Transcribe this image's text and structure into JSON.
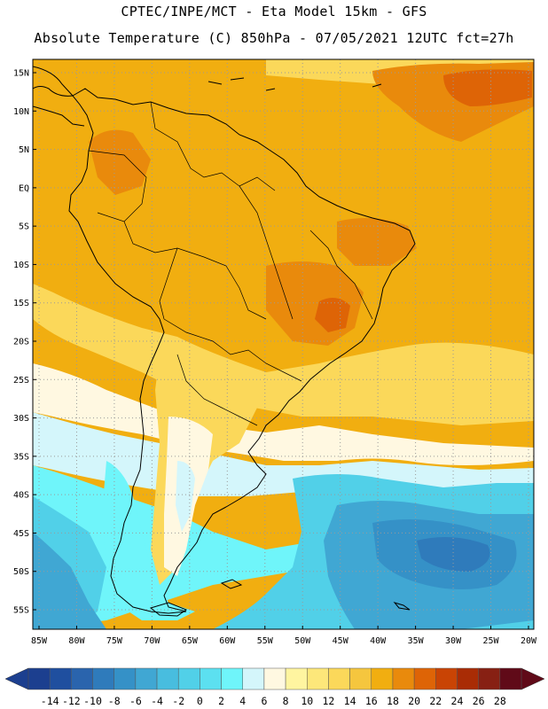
{
  "title_line1": "CPTEC/INPE/MCT -  Eta Model 15km - GFS",
  "title_line2": "Absolute Temperature (C) 850hPa - 07/05/2021 12UTC fct=27h",
  "lat_labels": [
    "15N",
    "10N",
    "5N",
    "EQ",
    "5S",
    "10S",
    "15S",
    "20S",
    "25S",
    "30S",
    "35S",
    "40S",
    "45S",
    "50S",
    "55S"
  ],
  "lat_values": [
    15,
    10,
    5,
    0,
    -5,
    -10,
    -15,
    -20,
    -25,
    -30,
    -35,
    -40,
    -45,
    -50,
    -55
  ],
  "lon_labels": [
    "85W",
    "80W",
    "75W",
    "70W",
    "65W",
    "60W",
    "55W",
    "50W",
    "45W",
    "40W",
    "35W",
    "30W",
    "25W",
    "20W"
  ],
  "lon_values": [
    -85,
    -80,
    -75,
    -70,
    -65,
    -60,
    -55,
    -50,
    -45,
    -40,
    -35,
    -30,
    -25,
    -20
  ],
  "colorbar": {
    "labels": [
      "-14",
      "-12",
      "-10",
      "-8",
      "-6",
      "-4",
      "-2",
      "0",
      "2",
      "4",
      "6",
      "8",
      "10",
      "12",
      "14",
      "16",
      "18",
      "20",
      "22",
      "24",
      "26",
      "28"
    ],
    "colors": [
      "#1c3f8f",
      "#1f4f9f",
      "#2a64ad",
      "#2f7bbb",
      "#3591c7",
      "#40a7d3",
      "#48bddf",
      "#51d0e8",
      "#5ce0f0",
      "#6ff5fa",
      "#d4f6fb",
      "#fff8e1",
      "#fff5a0",
      "#fde77a",
      "#fbd85a",
      "#f5c63e",
      "#f1ae10",
      "#e98a0c",
      "#de6406",
      "#c94404",
      "#a92c05",
      "#872013",
      "#600a18"
    ]
  },
  "map_colors": {
    "sea_warm": "#f1ae10",
    "land_base": "#f1ae10",
    "hot": "#e98a0c",
    "hotter": "#de6406",
    "mild": "#fbd85a",
    "cool": "#fff8e1",
    "cold1": "#d4f6fb",
    "cold2": "#6ff5fa",
    "cold3": "#51d0e8",
    "cold4": "#40a7d3",
    "cold5": "#3591c7",
    "cold6": "#2f7bbb"
  }
}
